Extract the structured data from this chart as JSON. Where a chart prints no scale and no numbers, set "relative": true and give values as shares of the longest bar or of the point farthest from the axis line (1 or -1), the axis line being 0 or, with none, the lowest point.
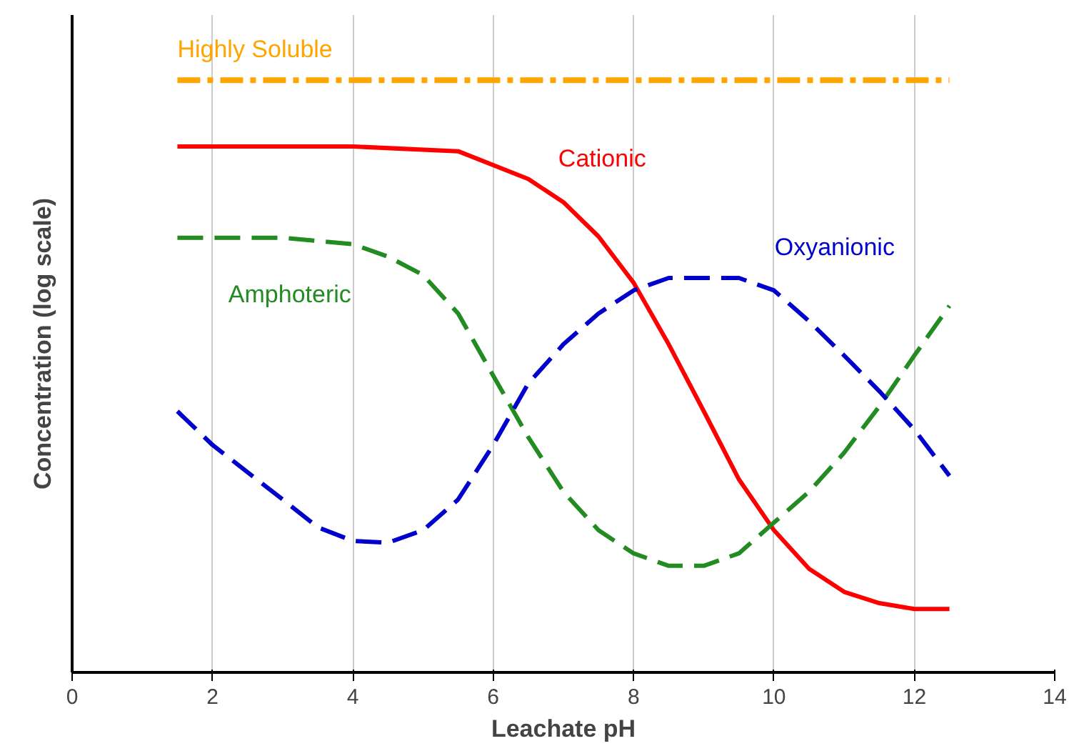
{
  "chart_data": {
    "type": "line",
    "relative": true,
    "xlabel": "Leachate pH",
    "ylabel": "Concentration (log scale)",
    "xlim": [
      0,
      14
    ],
    "xticks": [
      0,
      2,
      4,
      6,
      8,
      10,
      12,
      14
    ],
    "grid": "x",
    "legend": false,
    "marker": "none",
    "series": [
      {
        "name": "Highly Soluble",
        "color": "#ffa500",
        "line_style": "dashed",
        "x": [
          1.5,
          12.5
        ],
        "values": [
          1,
          1
        ]
      },
      {
        "name": "Cationic",
        "color": "#ff0000",
        "line_style": "solid",
        "x": [
          1.5,
          4,
          5.5,
          6.5,
          7,
          7.5,
          8,
          8.5,
          9,
          9.5,
          10,
          10.5,
          11,
          11.5,
          12,
          12.5
        ],
        "values": [
          0.888,
          0.888,
          0.88,
          0.833,
          0.794,
          0.736,
          0.658,
          0.554,
          0.441,
          0.326,
          0.24,
          0.175,
          0.136,
          0.117,
          0.107,
          0.107
        ]
      },
      {
        "name": "Amphoteric",
        "color": "#228b22",
        "line_style": "dashed",
        "x": [
          1.5,
          3,
          4,
          4.5,
          5,
          5.5,
          6,
          6.5,
          7,
          7.5,
          8,
          8.5,
          9,
          9.5,
          10,
          10.5,
          11,
          11.5,
          12,
          12.5
        ],
        "values": [
          0.734,
          0.734,
          0.723,
          0.702,
          0.671,
          0.606,
          0.501,
          0.397,
          0.305,
          0.24,
          0.201,
          0.18,
          0.18,
          0.201,
          0.253,
          0.305,
          0.371,
          0.449,
          0.535,
          0.619
        ]
      },
      {
        "name": "Oxyanionic",
        "color": "#0000cc",
        "line_style": "dashed",
        "x": [
          1.5,
          2,
          3,
          3.5,
          4,
          4.5,
          5,
          5.5,
          6,
          6.5,
          7,
          7.5,
          8,
          8.5,
          9,
          9.5,
          10,
          10.5,
          11,
          11.5,
          12,
          12.5
        ],
        "values": [
          0.441,
          0.384,
          0.292,
          0.245,
          0.222,
          0.219,
          0.24,
          0.292,
          0.384,
          0.488,
          0.554,
          0.606,
          0.645,
          0.666,
          0.666,
          0.666,
          0.645,
          0.593,
          0.535,
          0.475,
          0.41,
          0.332
        ]
      }
    ]
  }
}
